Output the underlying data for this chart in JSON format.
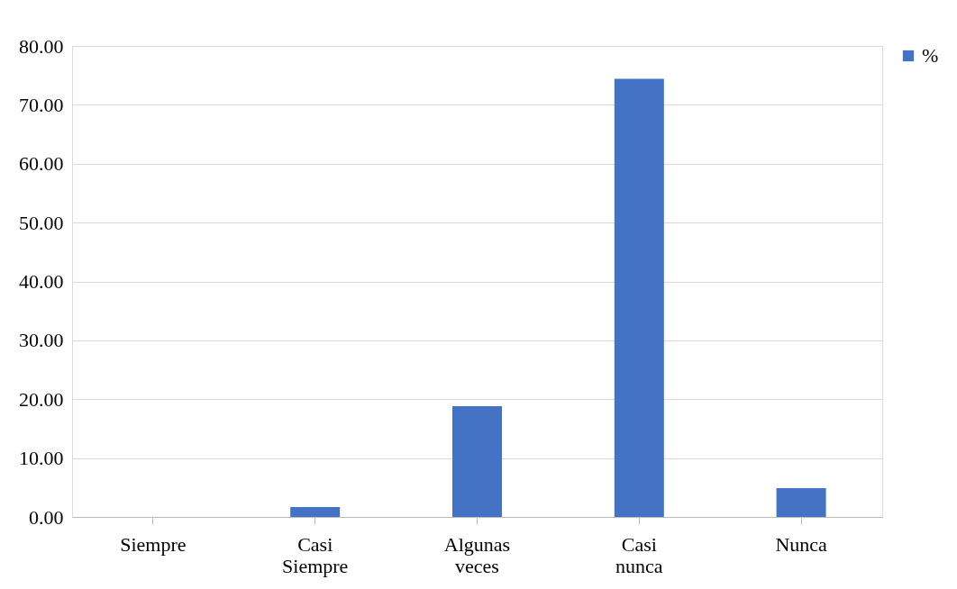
{
  "chart_data": {
    "type": "bar",
    "categories": [
      "Siempre",
      "Casi Siempre",
      "Algunas veces",
      "Casi nunca",
      "Nunca"
    ],
    "series": [
      {
        "name": "%",
        "color": "#4472c4",
        "values": [
          0,
          1.7,
          18.8,
          74.4,
          4.9
        ]
      }
    ],
    "ylim": [
      0,
      80
    ],
    "yticks": [
      {
        "value": 0,
        "label": "0.00"
      },
      {
        "value": 10,
        "label": "10.00"
      },
      {
        "value": 20,
        "label": "20.00"
      },
      {
        "value": 30,
        "label": "30.00"
      },
      {
        "value": 40,
        "label": "40.00"
      },
      {
        "value": 50,
        "label": "50.00"
      },
      {
        "value": 60,
        "label": "60.00"
      },
      {
        "value": 70,
        "label": "70.00"
      },
      {
        "value": 80,
        "label": "80.00"
      }
    ],
    "grid": "y",
    "legend": "right"
  }
}
